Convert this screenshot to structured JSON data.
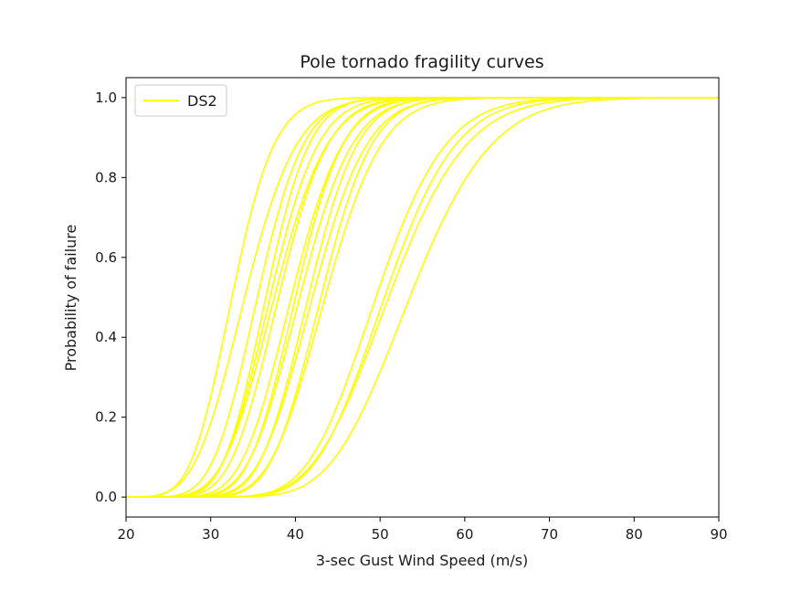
{
  "chart_data": {
    "type": "line",
    "title": "Pole tornado fragility curves",
    "xlabel": "3-sec Gust Wind Speed (m/s)",
    "ylabel": "Probability of failure",
    "xlim": [
      20,
      90
    ],
    "ylim": [
      -0.05,
      1.05
    ],
    "x_ticks": [
      20,
      30,
      40,
      50,
      60,
      70,
      80,
      90
    ],
    "y_ticks": [
      0.0,
      0.2,
      0.4,
      0.6,
      0.8,
      1.0
    ],
    "x_tick_labels": [
      "20",
      "30",
      "40",
      "50",
      "60",
      "70",
      "80",
      "90"
    ],
    "y_tick_labels": [
      "0.0",
      "0.2",
      "0.4",
      "0.6",
      "0.8",
      "1.0"
    ],
    "grid": false,
    "legend": {
      "entries": [
        "DS2"
      ],
      "position": "top-left"
    },
    "line_color": "#ffff00",
    "curve_model": "lognormal CDF (median, beta)",
    "curves": [
      {
        "median": 32.5,
        "beta": 0.12
      },
      {
        "median": 34.0,
        "beta": 0.14
      },
      {
        "median": 35.5,
        "beta": 0.12
      },
      {
        "median": 36.5,
        "beta": 0.11
      },
      {
        "median": 37.0,
        "beta": 0.12
      },
      {
        "median": 37.5,
        "beta": 0.13
      },
      {
        "median": 38.0,
        "beta": 0.12
      },
      {
        "median": 39.5,
        "beta": 0.12
      },
      {
        "median": 40.0,
        "beta": 0.11
      },
      {
        "median": 40.5,
        "beta": 0.12
      },
      {
        "median": 41.5,
        "beta": 0.11
      },
      {
        "median": 42.0,
        "beta": 0.12
      },
      {
        "median": 43.0,
        "beta": 0.11
      },
      {
        "median": 43.5,
        "beta": 0.12
      },
      {
        "median": 49.5,
        "beta": 0.13
      },
      {
        "median": 50.5,
        "beta": 0.13
      },
      {
        "median": 51.0,
        "beta": 0.14
      },
      {
        "median": 53.5,
        "beta": 0.14
      }
    ]
  }
}
